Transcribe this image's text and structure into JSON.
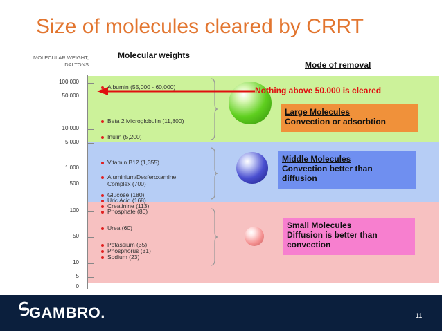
{
  "slide": {
    "title": "Size of molecules cleared by CRRT",
    "y_axis_label_line1": "MOLECULAR WEIGHT,",
    "y_axis_label_line2": "DALTONS",
    "col_molecular_weights": "Molecular weights",
    "col_mode_of_removal": "Mode of removal",
    "arrow_note": "Nothing above 50.000 is cleared",
    "page_number": "11",
    "logo_text": "GAMBRO."
  },
  "ticks": [
    "100,000",
    "50,000",
    "10,000",
    "5,000",
    "1,000",
    "500",
    "100",
    "50",
    "10",
    "5",
    "0"
  ],
  "molecules": [
    "Albumin (55,000 - 60,000)",
    "Beta 2 Microglobulin (11,800)",
    "Inulin (5,200)",
    "Vitamin B12 (1,355)",
    "Aluminium/Desferoxamine",
    "Complex (700)",
    "Glucose (180)",
    "Uric Acid (168)",
    "Creatinine (113)",
    "Phosphate (80)",
    "Urea (60)",
    "Potassium (35)",
    "Phosphorus (31)",
    "Sodium (23)"
  ],
  "categories": {
    "large": {
      "name": "Large Molecules",
      "mode": "Convection or adsorbtion",
      "color": "#f0913a"
    },
    "middle": {
      "name": "Middle Molecules",
      "mode_line1": "Convection better than",
      "mode_line2": "diffusion",
      "color": "#6f8ff0"
    },
    "small": {
      "name": "Small Molecules",
      "mode_line1": "Diffusion is better than",
      "mode_line2": "convection",
      "color": "#f77fcf"
    }
  }
}
